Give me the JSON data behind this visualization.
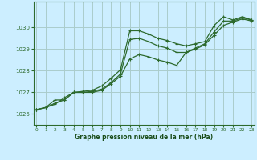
{
  "bg_color": "#cceeff",
  "grid_color": "#aacccc",
  "line_color": "#2d6a2d",
  "xlabel": "Graphe pression niveau de la mer (hPa)",
  "xlabel_color": "#1a4d1a",
  "ylim": [
    1025.5,
    1031.2
  ],
  "xlim": [
    -0.3,
    23.3
  ],
  "yticks": [
    1026,
    1027,
    1028,
    1029,
    1030
  ],
  "xticks": [
    0,
    1,
    2,
    3,
    4,
    5,
    6,
    7,
    8,
    9,
    10,
    11,
    12,
    13,
    14,
    15,
    16,
    17,
    18,
    19,
    20,
    21,
    22,
    23
  ],
  "series1": {
    "x": [
      0,
      1,
      2,
      3,
      4,
      5,
      6,
      7,
      8,
      9,
      10,
      11,
      12,
      13,
      14,
      15,
      16,
      17,
      18,
      19,
      20,
      21,
      22,
      23
    ],
    "y": [
      1026.2,
      1026.3,
      1026.65,
      1026.65,
      1027.0,
      1027.05,
      1027.1,
      1027.3,
      1027.65,
      1028.05,
      1029.85,
      1029.85,
      1029.7,
      1029.5,
      1029.4,
      1029.25,
      1029.15,
      1029.25,
      1029.35,
      1030.1,
      1030.5,
      1030.35,
      1030.5,
      1030.35
    ]
  },
  "series2": {
    "x": [
      0,
      1,
      2,
      3,
      4,
      5,
      6,
      7,
      8,
      9,
      10,
      11,
      12,
      13,
      14,
      15,
      16,
      17,
      18,
      19,
      20,
      21,
      22,
      23
    ],
    "y": [
      1026.2,
      1026.3,
      1026.5,
      1026.65,
      1027.0,
      1027.0,
      1027.05,
      1027.15,
      1027.45,
      1027.85,
      1029.45,
      1029.5,
      1029.35,
      1029.15,
      1029.05,
      1028.85,
      1028.85,
      1029.05,
      1029.25,
      1029.8,
      1030.3,
      1030.3,
      1030.45,
      1030.35
    ]
  },
  "series3": {
    "x": [
      0,
      1,
      2,
      3,
      4,
      5,
      6,
      7,
      8,
      9,
      10,
      11,
      12,
      13,
      14,
      15,
      16,
      17,
      18,
      19,
      20,
      21,
      22,
      23
    ],
    "y": [
      1026.2,
      1026.3,
      1026.45,
      1026.75,
      1027.0,
      1027.0,
      1027.0,
      1027.1,
      1027.4,
      1027.75,
      1028.55,
      1028.75,
      1028.65,
      1028.5,
      1028.4,
      1028.25,
      1028.85,
      1029.0,
      1029.2,
      1029.65,
      1030.1,
      1030.25,
      1030.4,
      1030.3
    ]
  }
}
